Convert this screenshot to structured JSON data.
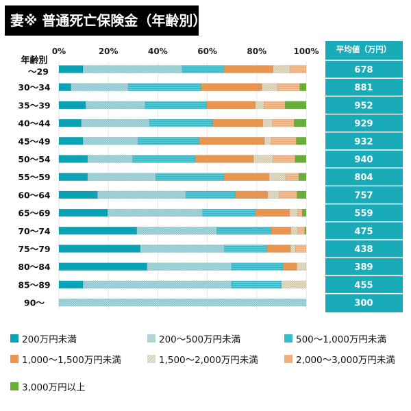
{
  "chart_data": {
    "type": "bar",
    "orientation": "horizontal",
    "stacked": true,
    "title": "妻※ 普通死亡保険金（年齢別）",
    "y_header": "年齢別",
    "categories": [
      "〜29",
      "30〜34",
      "35〜39",
      "40〜44",
      "45〜49",
      "50〜54",
      "55〜59",
      "60〜64",
      "65〜69",
      "70〜74",
      "75〜79",
      "80〜84",
      "85〜89",
      "90〜"
    ],
    "x_ticks": [
      "0%",
      "20%",
      "40%",
      "60%",
      "80%",
      "100%"
    ],
    "xlim": [
      0,
      100
    ],
    "grid": true,
    "legend_position": "bottom",
    "series": [
      {
        "name": "200万円未満",
        "color": "#0aa3b5",
        "pattern": "solid",
        "values": [
          9.7,
          4.9,
          10.8,
          9.0,
          9.7,
          11.6,
          11.6,
          15.6,
          19.7,
          31.5,
          32.9,
          35.6,
          9.7,
          0
        ]
      },
      {
        "name": "200〜500万円未満",
        "color": "#a6dde3",
        "pattern": "hatch",
        "values": [
          40.1,
          23.1,
          24.1,
          27.7,
          22.3,
          18.2,
          27.6,
          35.7,
          38.4,
          32.3,
          34.0,
          34.2,
          60.1,
          100
        ]
      },
      {
        "name": "500〜1,000万円未満",
        "color": "#38bccc",
        "pattern": "lines",
        "values": [
          16.9,
          29.5,
          24.8,
          25.5,
          24.7,
          25.3,
          27.5,
          20.0,
          21.3,
          22.1,
          17.2,
          20.8,
          20.2,
          0
        ]
      },
      {
        "name": "1,000〜1,500万円未満",
        "color": "#e8964f",
        "pattern": "solid",
        "values": [
          19.9,
          24.6,
          19.7,
          20.3,
          26.4,
          23.6,
          18.3,
          13.1,
          13.9,
          7.9,
          9.6,
          5.6,
          0,
          0
        ]
      },
      {
        "name": "1,500〜2,000万円未満",
        "color": "#f2e2c4",
        "pattern": "hatch",
        "values": [
          6.9,
          6.3,
          3.6,
          3.9,
          2.8,
          7.9,
          6.7,
          4.7,
          3.2,
          2.8,
          2.0,
          3.8,
          10.0,
          0
        ]
      },
      {
        "name": "2,000〜3,000万円未満",
        "color": "#eeb07e",
        "pattern": "lines",
        "values": [
          6.5,
          9.0,
          8.5,
          8.7,
          10.1,
          8.9,
          5.3,
          7.2,
          1.9,
          2.8,
          4.3,
          0,
          0,
          0
        ]
      },
      {
        "name": "3,000万円以上",
        "color": "#6aae3a",
        "pattern": "solid",
        "values": [
          0,
          2.6,
          8.5,
          4.9,
          4.0,
          4.5,
          3.0,
          3.7,
          1.6,
          0.6,
          0,
          0,
          0,
          0
        ]
      }
    ],
    "average": {
      "header": "平均値（万円）",
      "values": [
        "678",
        "881",
        "952",
        "929",
        "932",
        "940",
        "804",
        "757",
        "559",
        "475",
        "438",
        "389",
        "455",
        "300"
      ],
      "color": "#1aabb8"
    }
  }
}
